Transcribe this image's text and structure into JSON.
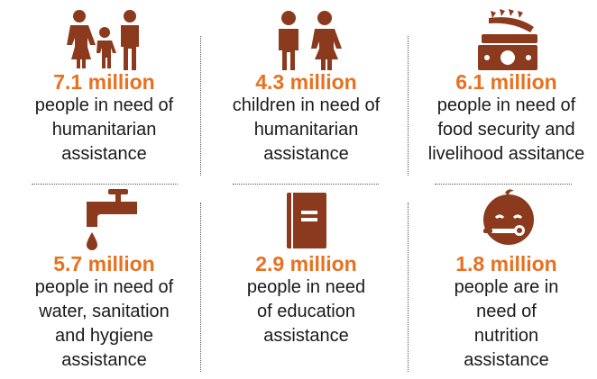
{
  "stats": [
    {
      "value": "7.1 million",
      "desc": [
        "people in need of",
        "humanitarian",
        "assistance"
      ],
      "icon": "family-icon"
    },
    {
      "value": "4.3 million",
      "desc": [
        "children in need of",
        "humanitarian",
        "assistance"
      ],
      "icon": "children-icon"
    },
    {
      "value": "6.1 million",
      "desc": [
        "people in need of",
        "food security and",
        "livelihood assitance"
      ],
      "icon": "food-money-icon"
    },
    {
      "value": "5.7 million",
      "desc": [
        "people in need of",
        "water, sanitation",
        "and hygiene",
        "assistance"
      ],
      "icon": "water-tap-icon"
    },
    {
      "value": "2.9 million",
      "desc": [
        "people in need",
        "of education",
        "assistance"
      ],
      "icon": "book-icon"
    },
    {
      "value": "1.8 million",
      "desc": [
        "people are in",
        "need of",
        "nutrition",
        "assistance"
      ],
      "icon": "baby-feeding-icon"
    }
  ],
  "colors": {
    "accent": "#e8701f",
    "icon": "#8c3a1e",
    "text": "#1a1a1a"
  }
}
